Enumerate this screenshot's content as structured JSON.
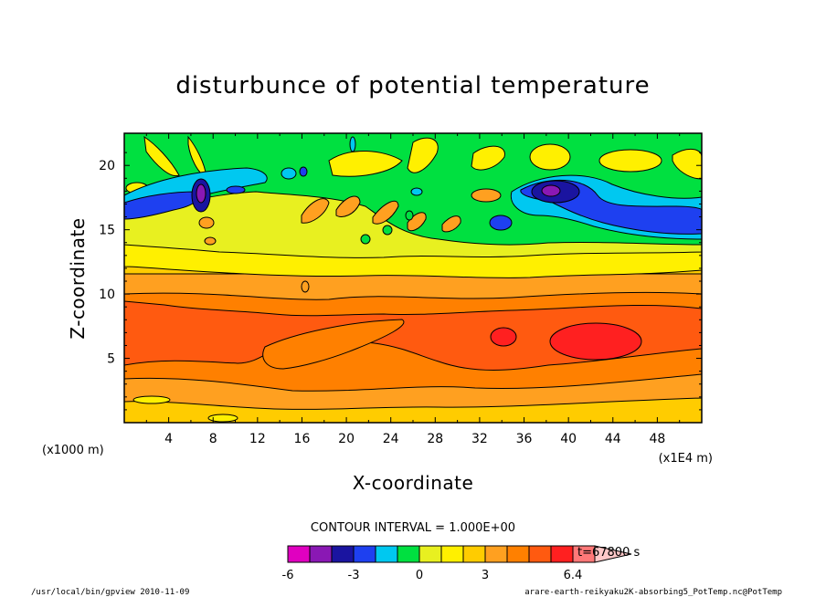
{
  "chart_data": {
    "type": "heatmap",
    "title": "disturbunce of potential temperature",
    "xlabel": "X-coordinate",
    "ylabel": "Z-coordinate",
    "x_unit_left": "(x1000 m)",
    "x_unit_right": "(x1E4 m)",
    "xlim": [
      0,
      52
    ],
    "ylim": [
      0,
      22.5
    ],
    "x_ticks": [
      "4",
      "8",
      "12",
      "16",
      "20",
      "24",
      "28",
      "32",
      "36",
      "40",
      "44",
      "48"
    ],
    "y_ticks": [
      "5",
      "10",
      "15",
      "20"
    ],
    "contour_interval_text": "CONTOUR INTERVAL = 1.000E+00",
    "time_label": "t=67800 s",
    "colorbar": {
      "labels": [
        "-6",
        "-3",
        "0",
        "3",
        "6.4"
      ],
      "colors": [
        "#e000c0",
        "#8a18b4",
        "#1a14a0",
        "#1e40f0",
        "#00c8f0",
        "#00e040",
        "#e8f020",
        "#fff000",
        "#ffcc00",
        "#ffa020",
        "#ff8000",
        "#ff5a10",
        "#ff2020",
        "#ff7878",
        "#ffc8c8"
      ]
    },
    "levels_description": "disturbance ranges from about -6 to 6.4 K",
    "field": [
      {
        "region": "z 0-1.5 surface band",
        "value": 1.5
      },
      {
        "region": "z 1.5-3 band",
        "value": 2.5
      },
      {
        "region": "z 3-5 band",
        "value": 3.5
      },
      {
        "region": "z 5-8 band",
        "value": 4.5
      },
      {
        "region": "x 34-36 z 6.5-7.5 max",
        "value": 5.5
      },
      {
        "region": "x 38-46 z 5-8 max",
        "value": 6.0
      },
      {
        "region": "z 8-12 band",
        "value": 3.0
      },
      {
        "region": "z 12-13.5 band",
        "value": 1.5
      },
      {
        "region": "z 13.5-15 band",
        "value": 0.5
      },
      {
        "region": "z 15-17 mixed",
        "value": -0.5
      },
      {
        "region": "x 6-7 z 17-19 min",
        "value": -4.5
      },
      {
        "region": "x 37-39 z 18-19 min",
        "value": -4.0
      },
      {
        "region": "x 40-52 z 15.5-17 low",
        "value": -3.0
      },
      {
        "region": "z 19-22.5 upper band",
        "value": -0.5
      }
    ]
  },
  "footer": {
    "left": "/usr/local/bin/gpview  2010-11-09",
    "right": "arare-earth-reikyaku2K-absorbing5_PotTemp.nc@PotTemp"
  }
}
